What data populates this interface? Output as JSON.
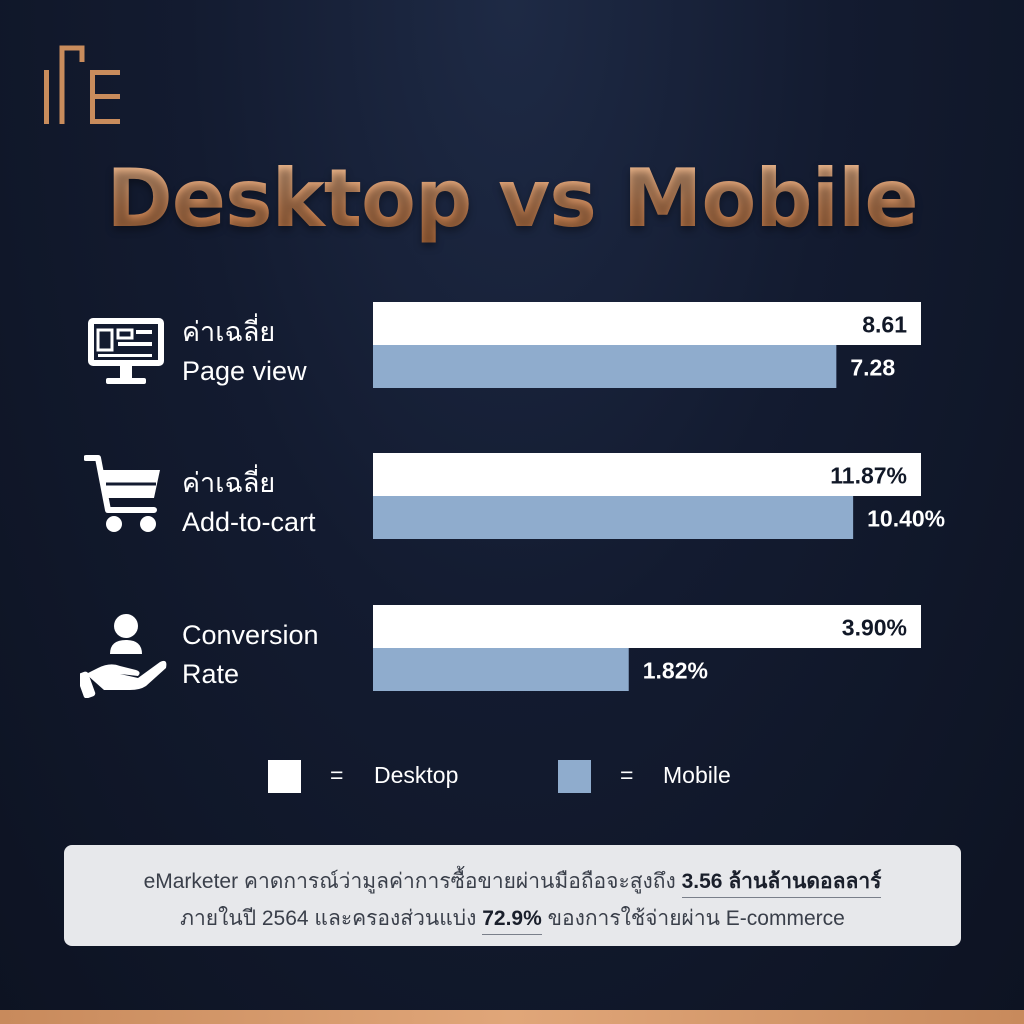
{
  "title": "Desktop vs Mobile",
  "colors": {
    "desktop": "#ffffff",
    "mobile": "#8faccd",
    "accent": "#d99a6c",
    "background": "#131b30"
  },
  "chart_data": {
    "type": "bar",
    "orientation": "horizontal",
    "categories": [
      {
        "line1": "ค่าเฉลี่ย",
        "line2": "Page view",
        "icon": "monitor-icon"
      },
      {
        "line1": "ค่าเฉลี่ย",
        "line2": "Add-to-cart",
        "icon": "shopping-cart-icon"
      },
      {
        "line1": "Conversion",
        "line2": "Rate",
        "icon": "hand-user-icon"
      }
    ],
    "series": [
      {
        "name": "Desktop",
        "values": [
          8.61,
          11.87,
          3.9
        ],
        "labels": [
          "8.61",
          "11.87%",
          "3.90%"
        ]
      },
      {
        "name": "Mobile",
        "values": [
          7.28,
          10.4,
          1.82
        ],
        "labels": [
          "7.28",
          "10.40%",
          "1.82%"
        ]
      }
    ],
    "note": "each group uses its own scale relative to the Desktop value"
  },
  "legend": {
    "equals": "=",
    "desktop_label": "Desktop",
    "mobile_label": "Mobile"
  },
  "footnote": {
    "line1_text": "eMarketer คาดการณ์ว่ามูลค่าการซื้อขายผ่านมือถือจะสูงถึง ",
    "line1_highlight": "3.56 ล้านล้านดอลลาร์",
    "line2_prefix": "ภายในปี 2564 และครองส่วนแบ่ง ",
    "line2_highlight": "72.9%",
    "line2_suffix": " ของการใช้จ่ายผ่าน E-commerce"
  }
}
